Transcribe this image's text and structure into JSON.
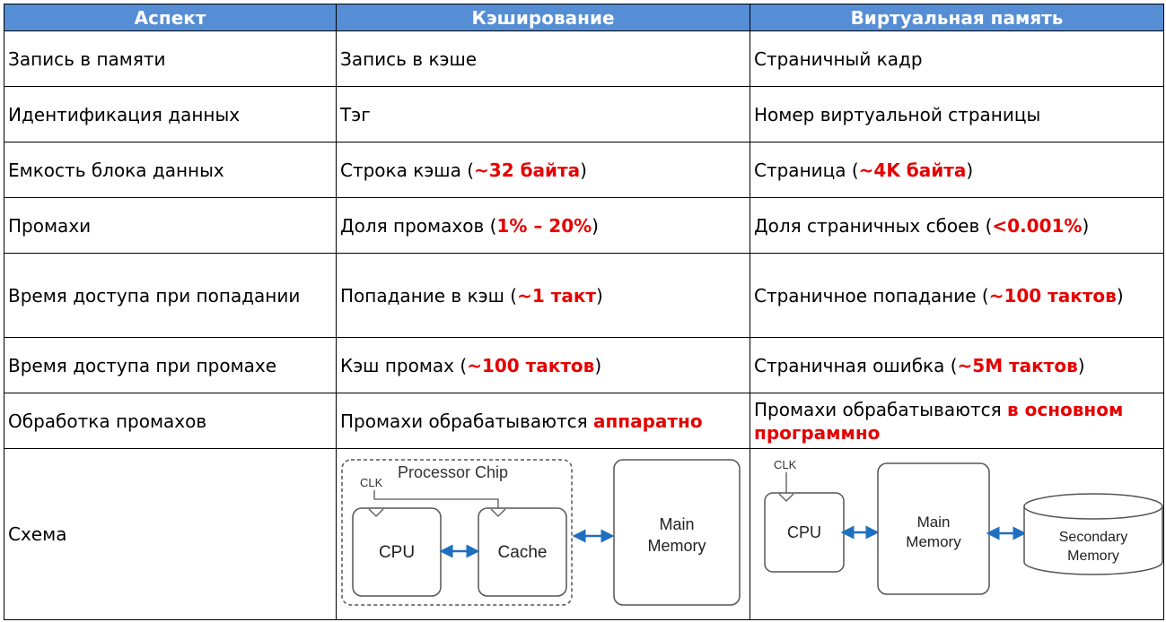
{
  "headers": [
    "Аспект",
    "Кэширование",
    "Виртуальная память"
  ],
  "rows": [
    {
      "aspect": "Запись в памяти",
      "cache": {
        "pre": "Запись в кэше",
        "hl": "",
        "post": ""
      },
      "vm": {
        "pre": "Страничный кадр",
        "hl": "",
        "post": ""
      }
    },
    {
      "aspect": "Идентификация данных",
      "cache": {
        "pre": "Тэг",
        "hl": "",
        "post": ""
      },
      "vm": {
        "pre": "Номер виртуальной страницы",
        "hl": "",
        "post": ""
      }
    },
    {
      "aspect": "Емкость блока данных",
      "cache": {
        "pre": "Строка кэша (",
        "hl": "~32 байта",
        "post": ")"
      },
      "vm": {
        "pre": "Страница (",
        "hl": "~4K байта",
        "post": ")"
      }
    },
    {
      "aspect": "Промахи",
      "cache": {
        "pre": "Доля промахов (",
        "hl": "1% – 20%",
        "post": ")"
      },
      "vm": {
        "pre": "Доля страничных сбоев (",
        "hl": "<0.001%",
        "post": ")"
      }
    },
    {
      "aspect": "Время доступа при попадании",
      "cache": {
        "pre": "Попадание в кэш (",
        "hl": "~1 такт",
        "post": ")"
      },
      "vm": {
        "pre": "Страничное попадание (",
        "hl": "~100 тактов",
        "post": ")"
      }
    },
    {
      "aspect": "Время доступа при промахе",
      "cache": {
        "pre": "Кэш промах (",
        "hl": "~100 тактов",
        "post": ")"
      },
      "vm": {
        "pre": "Страничная ошибка (",
        "hl": "~5M тактов",
        "post": ")"
      }
    },
    {
      "aspect": "Обработка промахов",
      "cache": {
        "pre": "Промахи обрабатываются ",
        "hl": "аппаратно",
        "post": ""
      },
      "vm": {
        "pre": "Промахи обрабатываются ",
        "hl": "в основном программно",
        "post": ""
      }
    }
  ],
  "scheme": {
    "aspect": "Схема",
    "cache_diagram": {
      "chip": "Processor Chip",
      "clk": "CLK",
      "cpu": "CPU",
      "cache": "Cache",
      "mem1": "Main",
      "mem2": "Memory"
    },
    "vm_diagram": {
      "clk": "CLK",
      "cpu": "CPU",
      "mem1": "Main",
      "mem2": "Memory",
      "sec1": "Secondary",
      "sec2": "Memory"
    }
  },
  "colors": {
    "header_bg": "#558ED5",
    "highlight": "#E60000",
    "arrow": "#1F6FBF"
  }
}
